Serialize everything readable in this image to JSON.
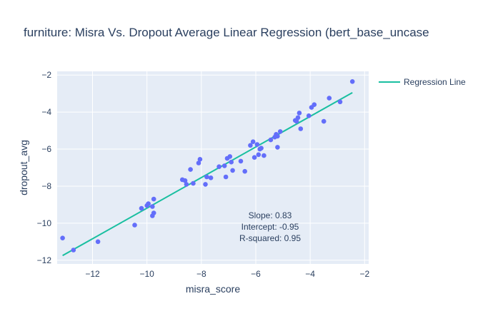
{
  "chart_data": {
    "type": "scatter",
    "title": "furniture: Misra Vs. Dropout Average Linear Regression (bert_base_uncase",
    "xlabel": "misra_score",
    "ylabel": "dropout_avg",
    "xlim": [
      -13.3,
      -1.85
    ],
    "ylim": [
      -12.2,
      -1.8
    ],
    "x_ticks": [
      -12,
      -10,
      -8,
      -6,
      -4,
      -2
    ],
    "y_ticks": [
      -12,
      -10,
      -8,
      -6,
      -4,
      -2
    ],
    "x_tick_labels": [
      "−12",
      "−10",
      "−8",
      "−6",
      "−4",
      "−2"
    ],
    "y_tick_labels": [
      "−12",
      "−10",
      "−8",
      "−6",
      "−4",
      "−2"
    ],
    "grid": true,
    "legend_position": "top-right",
    "series": [
      {
        "name": "",
        "kind": "markers",
        "color": "#636efa",
        "points": [
          [
            -13.1,
            -10.8
          ],
          [
            -12.7,
            -11.45
          ],
          [
            -11.8,
            -11.0
          ],
          [
            -10.45,
            -10.1
          ],
          [
            -10.2,
            -9.2
          ],
          [
            -10.0,
            -9.05
          ],
          [
            -9.95,
            -8.95
          ],
          [
            -9.8,
            -9.6
          ],
          [
            -9.8,
            -9.1
          ],
          [
            -9.75,
            -9.45
          ],
          [
            -9.75,
            -8.7
          ],
          [
            -8.7,
            -7.65
          ],
          [
            -8.6,
            -7.7
          ],
          [
            -8.55,
            -7.9
          ],
          [
            -8.4,
            -7.1
          ],
          [
            -8.3,
            -7.85
          ],
          [
            -8.1,
            -6.75
          ],
          [
            -8.05,
            -6.55
          ],
          [
            -7.85,
            -7.9
          ],
          [
            -7.8,
            -7.5
          ],
          [
            -7.65,
            -7.55
          ],
          [
            -7.35,
            -6.95
          ],
          [
            -7.15,
            -6.9
          ],
          [
            -7.1,
            -7.5
          ],
          [
            -7.05,
            -6.5
          ],
          [
            -6.95,
            -6.4
          ],
          [
            -6.9,
            -6.7
          ],
          [
            -6.85,
            -7.15
          ],
          [
            -6.55,
            -6.65
          ],
          [
            -6.4,
            -7.2
          ],
          [
            -6.2,
            -5.8
          ],
          [
            -6.1,
            -5.6
          ],
          [
            -6.05,
            -6.45
          ],
          [
            -5.95,
            -5.75
          ],
          [
            -5.9,
            -6.3
          ],
          [
            -5.85,
            -6.0
          ],
          [
            -5.8,
            -5.95
          ],
          [
            -5.7,
            -6.35
          ],
          [
            -5.45,
            -5.5
          ],
          [
            -5.3,
            -5.35
          ],
          [
            -5.25,
            -5.2
          ],
          [
            -5.2,
            -5.3
          ],
          [
            -5.2,
            -5.9
          ],
          [
            -5.1,
            -5.05
          ],
          [
            -4.55,
            -4.45
          ],
          [
            -4.5,
            -4.5
          ],
          [
            -4.45,
            -4.3
          ],
          [
            -4.4,
            -4.05
          ],
          [
            -4.35,
            -4.9
          ],
          [
            -4.05,
            -4.2
          ],
          [
            -3.95,
            -3.75
          ],
          [
            -3.85,
            -3.6
          ],
          [
            -3.5,
            -4.5
          ],
          [
            -3.3,
            -3.25
          ],
          [
            -2.9,
            -3.45
          ],
          [
            -2.45,
            -2.35
          ]
        ]
      },
      {
        "name": "Regression Line",
        "kind": "line",
        "color": "#19bfa0",
        "points": [
          [
            -13.1,
            -11.75
          ],
          [
            -2.45,
            -2.95
          ]
        ]
      }
    ],
    "annotations": [
      "Slope: 0.83",
      "Intercept: -0.95",
      "R-squared: 0.95"
    ]
  }
}
